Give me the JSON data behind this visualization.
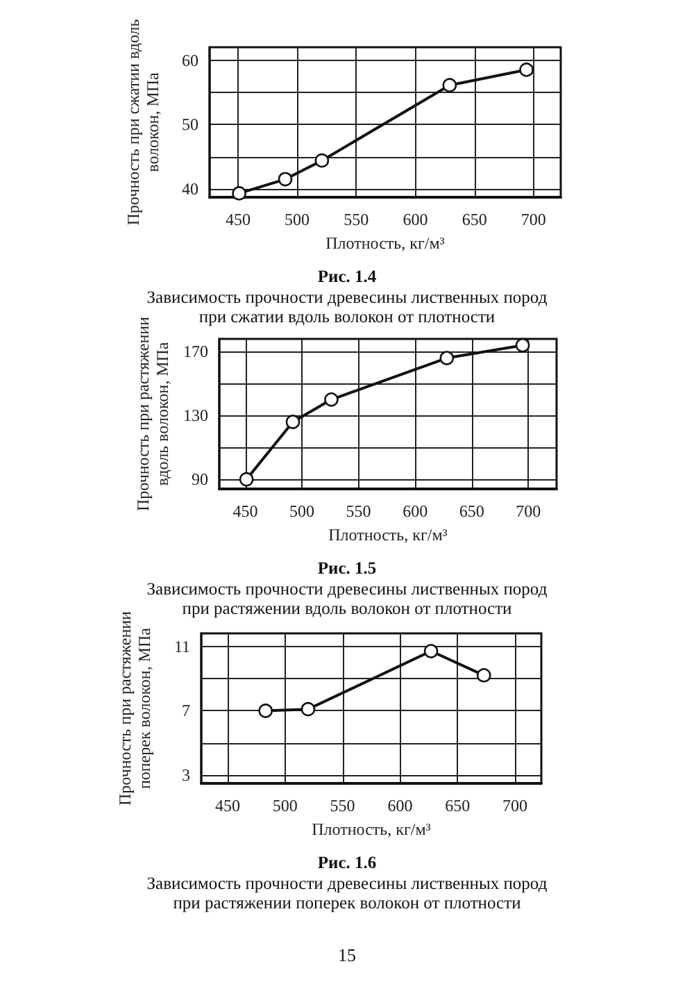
{
  "chart_data": [
    {
      "type": "line",
      "xlabel": "Плотность, кг/м³",
      "ylabel": "Прочность при сжатии вдоль волокон, МПа",
      "x": [
        451,
        490,
        521,
        629,
        694
      ],
      "series": [
        {
          "color": "#111111",
          "values": [
            39.3,
            41.5,
            44.4,
            56.1,
            58.5
          ]
        }
      ],
      "xlim": [
        426,
        723
      ],
      "ylim": [
        38.7,
        62
      ],
      "xticks": [
        450,
        500,
        550,
        600,
        650,
        700
      ],
      "yticks": [
        40,
        {
          "value": 45,
          "label": null
        },
        50,
        {
          "value": 55,
          "label": null
        },
        60
      ],
      "grid": true,
      "marker": "circle",
      "line_style": "solid",
      "annotations": [
        "Рис. 1.4",
        "Зависимость прочности древесины лиственных пород при сжатии вдоль волокон от плотности"
      ]
    },
    {
      "type": "line",
      "xlabel": "Плотность, кг/м³",
      "ylabel": "Прочность при растяжении вдоль волокон, МПа",
      "x": [
        451,
        492,
        526,
        628,
        695
      ],
      "series": [
        {
          "color": "#111111",
          "values": [
            90,
            126,
            140,
            166,
            174
          ]
        }
      ],
      "xlim": [
        427,
        725
      ],
      "ylim": [
        84,
        178
      ],
      "xticks": [
        450,
        500,
        550,
        600,
        650,
        700
      ],
      "yticks": [
        90,
        {
          "value": 110,
          "label": null
        },
        130,
        {
          "value": 150,
          "label": null
        },
        170
      ],
      "grid": true,
      "marker": "circle",
      "line_style": "solid",
      "annotations": [
        "Рис. 1.5",
        "Зависимость прочности древесины лиственных пород при растяжении вдоль волокон от плотности"
      ]
    },
    {
      "type": "line",
      "xlabel": "Плотность, кг/м³",
      "ylabel": "Прочность при растяжении поперек волокон, МПа",
      "x": [
        483,
        520,
        627,
        673
      ],
      "series": [
        {
          "color": "#111111",
          "values": [
            7.0,
            7.1,
            10.7,
            9.2
          ]
        }
      ],
      "xlim": [
        427,
        723
      ],
      "ylim": [
        2.5,
        11.8
      ],
      "xticks": [
        450,
        500,
        550,
        600,
        650,
        700
      ],
      "yticks": [
        3,
        {
          "value": 5,
          "label": null
        },
        7,
        {
          "value": 9,
          "label": null
        },
        11
      ],
      "grid": true,
      "marker": "circle",
      "line_style": "solid",
      "annotations": [
        "Рис. 1.6",
        "Зависимость прочности древесины лиственных пород при растяжении поперек волокон от плотности",
        "15"
      ]
    }
  ]
}
